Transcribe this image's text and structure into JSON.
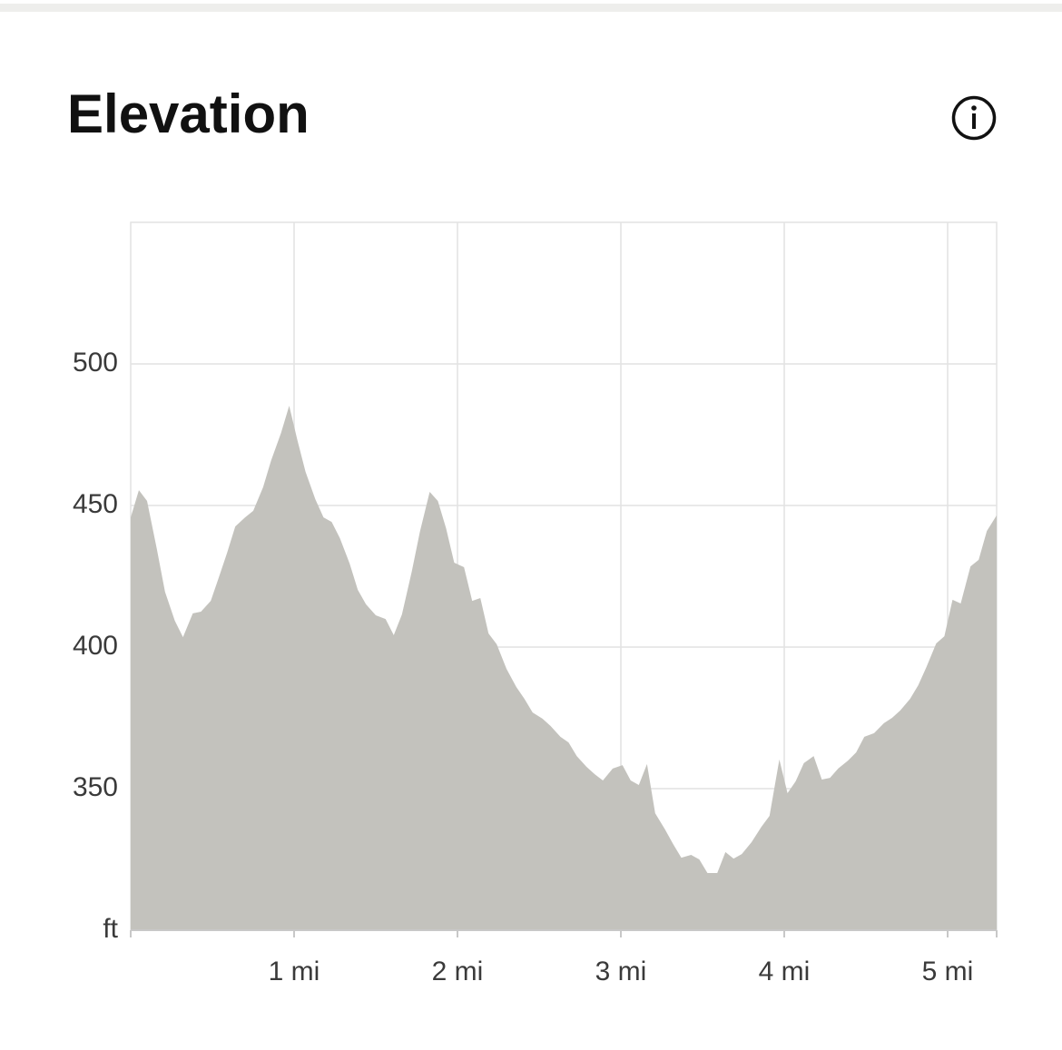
{
  "chart_data": {
    "type": "area",
    "title": "Elevation",
    "color": "#c3c2bd",
    "grid": true,
    "x": [
      0,
      0.05,
      0.1,
      0.16,
      0.21,
      0.27,
      0.32,
      0.38,
      0.43,
      0.49,
      0.54,
      0.59,
      0.64,
      0.7,
      0.75,
      0.81,
      0.86,
      0.92,
      0.97,
      1.02,
      1.07,
      1.13,
      1.18,
      1.23,
      1.28,
      1.34,
      1.39,
      1.44,
      1.5,
      1.56,
      1.61,
      1.66,
      1.72,
      1.77,
      1.83,
      1.88,
      1.93,
      1.98,
      2.04,
      2.09,
      2.14,
      2.19,
      2.24,
      2.3,
      2.36,
      2.41,
      2.46,
      2.52,
      2.57,
      2.63,
      2.68,
      2.73,
      2.79,
      2.84,
      2.89,
      2.95,
      3.01,
      3.06,
      3.11,
      3.16,
      3.21,
      3.27,
      3.32,
      3.37,
      3.43,
      3.48,
      3.53,
      3.59,
      3.64,
      3.69,
      3.74,
      3.8,
      3.86,
      3.91,
      3.97,
      4.02,
      4.07,
      4.12,
      4.18,
      4.23,
      4.28,
      4.33,
      4.39,
      4.44,
      4.49,
      4.55,
      4.61,
      4.66,
      4.71,
      4.77,
      4.82,
      4.87,
      4.93,
      4.98,
      5.03,
      5.08,
      5.14,
      5.19,
      5.24,
      5.3
    ],
    "values": [
      445.8,
      455.4,
      451.6,
      434.6,
      419.5,
      409.3,
      403.5,
      411.9,
      412.5,
      416.3,
      424.7,
      433.3,
      442.6,
      445.8,
      448.1,
      456.4,
      466,
      475.6,
      485.2,
      473.1,
      461.9,
      452.2,
      445.8,
      444.2,
      438.5,
      429.5,
      420.2,
      415.1,
      411.2,
      409.9,
      404.2,
      411.5,
      426.6,
      440.7,
      454.8,
      451.6,
      442,
      429.8,
      428.2,
      416.3,
      417.3,
      404.8,
      401,
      392.3,
      385.9,
      381.7,
      376.9,
      374.7,
      372.1,
      368.3,
      366.3,
      361.5,
      357.7,
      355.1,
      352.9,
      357.1,
      358.3,
      352.9,
      351.3,
      358.7,
      341.3,
      335.6,
      330.4,
      325.6,
      326.6,
      325,
      320.2,
      320.2,
      327.6,
      325.3,
      326.9,
      331.1,
      336.5,
      340.4,
      360.3,
      348.4,
      352.6,
      359,
      361.5,
      353.2,
      353.8,
      357.1,
      359.9,
      362.8,
      368.3,
      369.6,
      373.1,
      375,
      377.6,
      381.7,
      386.5,
      392.9,
      401.3,
      403.8,
      416.7,
      415.4,
      428.5,
      430.8,
      441,
      446.5
    ],
    "xlim": [
      0,
      5.3
    ],
    "xticks": [
      {
        "value": 1,
        "label": "1 mi"
      },
      {
        "value": 2,
        "label": "2 mi"
      },
      {
        "value": 3,
        "label": "3 mi"
      },
      {
        "value": 4,
        "label": "4 mi"
      },
      {
        "value": 5,
        "label": "5 mi"
      }
    ],
    "ylim": [
      300,
      550
    ],
    "yticks": [
      {
        "value": 300,
        "label": "ft"
      },
      350,
      400,
      450,
      500
    ]
  }
}
